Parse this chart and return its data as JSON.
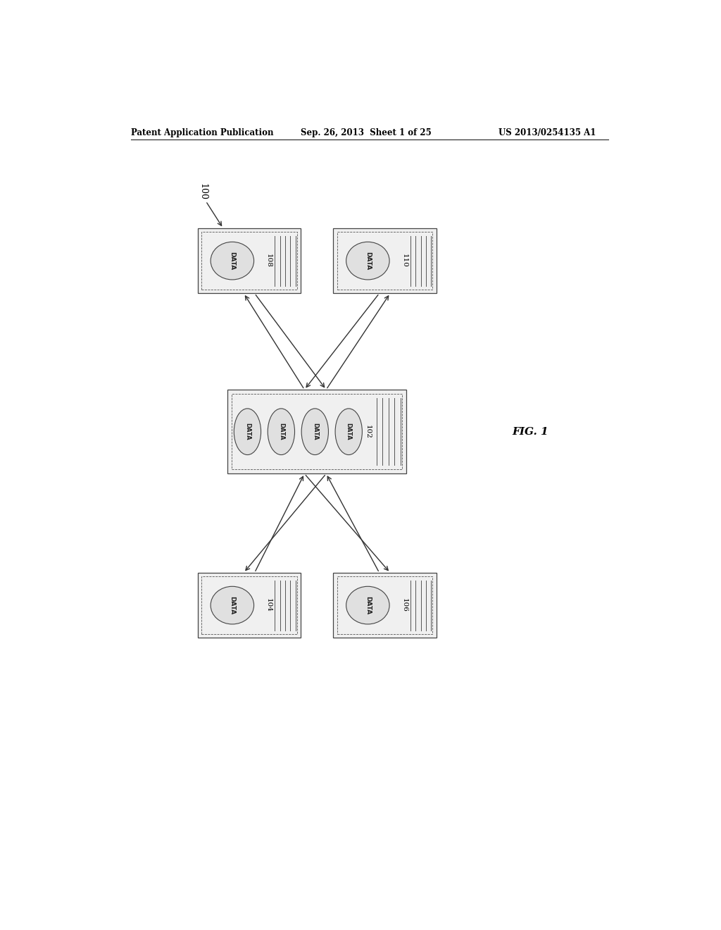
{
  "header_left": "Patent Application Publication",
  "header_mid": "Sep. 26, 2013  Sheet 1 of 25",
  "header_right": "US 2013/0254135 A1",
  "fig_label": "FIG. 1",
  "label_100": "100",
  "label_102": "102",
  "label_104": "104",
  "label_106": "106",
  "label_108": "108",
  "label_110": "110",
  "bg_color": "#ffffff",
  "box_color": "#333333",
  "line_color": "#222222",
  "text_color": "#000000"
}
